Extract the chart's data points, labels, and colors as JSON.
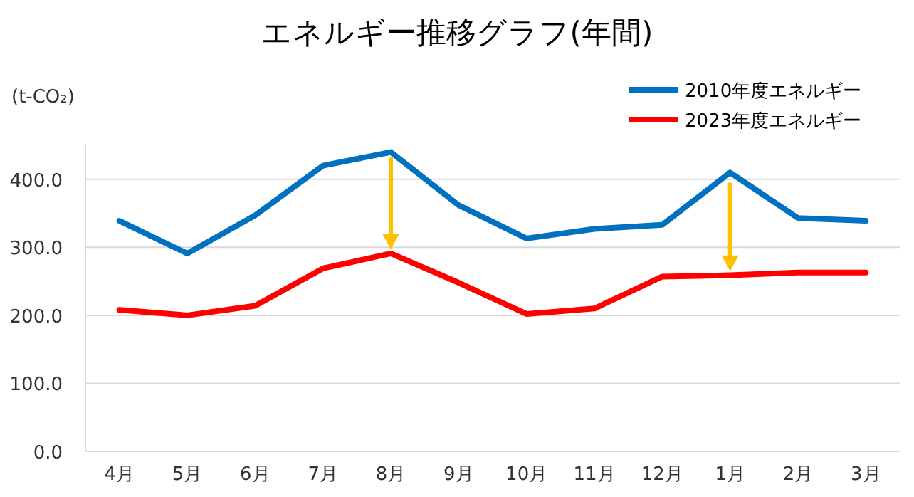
{
  "chart_data": {
    "type": "line",
    "title": "エネルギー推移グラフ(年間)",
    "ylabel": "(t-CO₂)",
    "categories": [
      "4月",
      "5月",
      "6月",
      "7月",
      "8月",
      "9月",
      "10月",
      "11月",
      "12月",
      "1月",
      "2月",
      "3月"
    ],
    "series": [
      {
        "name": "2010年度エネルギー",
        "color": "#0070c0",
        "values": [
          339,
          291,
          347,
          420,
          440,
          362,
          313,
          327,
          333,
          410,
          343,
          339
        ]
      },
      {
        "name": "2023年度エネルギー",
        "color": "#ff0000",
        "values": [
          208,
          200,
          214,
          269,
          291,
          248,
          202,
          210,
          257,
          259,
          263,
          263
        ]
      }
    ],
    "ylim": [
      0,
      450
    ],
    "yticks": [
      {
        "value": 0,
        "label": "0.0"
      },
      {
        "value": 100,
        "label": "100.0"
      },
      {
        "value": 200,
        "label": "200.0"
      },
      {
        "value": 300,
        "label": "300.0"
      },
      {
        "value": 400,
        "label": "400.0"
      }
    ],
    "grid": "y",
    "legend": "top right",
    "marker": "none",
    "line_style": "solid"
  }
}
